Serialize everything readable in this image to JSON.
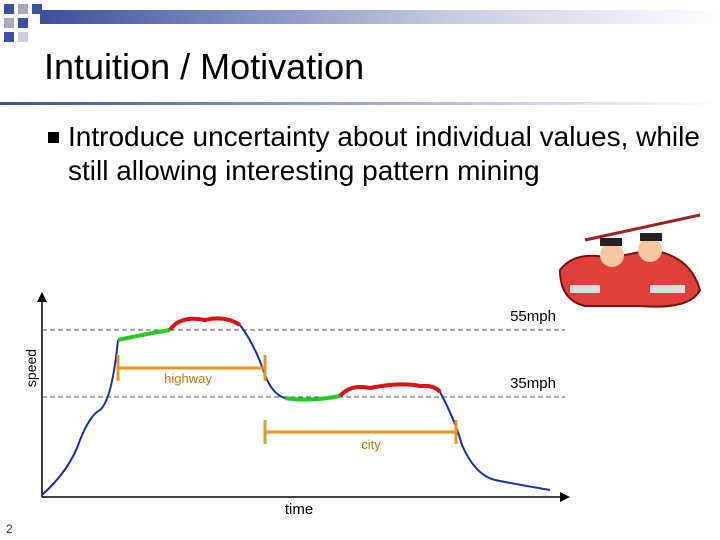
{
  "slide": {
    "title": "Intuition / Motivation",
    "bullets": [
      "Introduce uncertainty about individual values, while still allowing interesting pattern mining"
    ],
    "page_number": "2"
  },
  "diagram": {
    "y_axis_label": "speed",
    "x_axis_label": "time",
    "levels": [
      "55mph",
      "35mph"
    ],
    "ranges": [
      "highway",
      "city"
    ]
  }
}
